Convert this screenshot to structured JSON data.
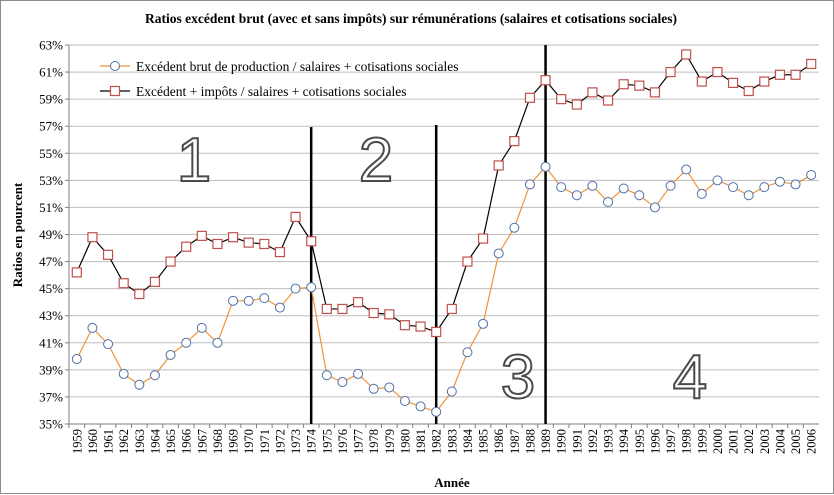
{
  "chart_data": {
    "type": "line",
    "title": "Ratios excédent brut (avec et sans impôts) sur rémunérations (salaires et cotisations sociales)",
    "xlabel": "Année",
    "ylabel": "Ratios en pourcent",
    "ylim": [
      35,
      63
    ],
    "y_ticks": [
      35,
      37,
      39,
      41,
      43,
      45,
      47,
      49,
      51,
      53,
      55,
      57,
      59,
      61,
      63
    ],
    "y_tick_suffix": "%",
    "grid": "horizontal",
    "legend_position": "top-left",
    "categories": [
      "1959",
      "1960",
      "1961",
      "1962",
      "1963",
      "1964",
      "1965",
      "1966",
      "1967",
      "1968",
      "1969",
      "1970",
      "1971",
      "1972",
      "1973",
      "1974",
      "1975",
      "1976",
      "1977",
      "1978",
      "1979",
      "1980",
      "1981",
      "1982",
      "1983",
      "1984",
      "1985",
      "1986",
      "1987",
      "1988",
      "1989",
      "1990",
      "1991",
      "1992",
      "1993",
      "1994",
      "1995",
      "1996",
      "1997",
      "1998",
      "1999",
      "2000",
      "2001",
      "2002",
      "2003",
      "2004",
      "2005",
      "2006"
    ],
    "series": [
      {
        "name": "Excédent brut de production / salaires + cotisations sociales",
        "marker": "circle",
        "color": "#f0923a",
        "marker_edge": "#4f6fa8",
        "values": [
          39.8,
          42.1,
          40.9,
          38.7,
          37.9,
          38.6,
          40.1,
          41.0,
          42.1,
          41.0,
          44.1,
          44.1,
          44.3,
          43.6,
          45.0,
          45.1,
          38.6,
          38.1,
          38.7,
          37.6,
          37.7,
          36.7,
          36.3,
          35.9,
          37.4,
          40.3,
          42.4,
          47.6,
          49.5,
          52.7,
          54.0,
          52.5,
          51.9,
          52.6,
          51.4,
          52.4,
          51.9,
          51.0,
          52.6,
          53.8,
          52.0,
          53.0,
          52.5,
          51.9,
          52.5,
          52.9,
          52.7,
          53.4
        ]
      },
      {
        "name": "Excédent + impôts / salaires + cotisations sociales",
        "marker": "square",
        "color": "#000000",
        "marker_edge": "#c0504d",
        "values": [
          46.2,
          48.8,
          47.5,
          45.4,
          44.6,
          45.5,
          47.0,
          48.1,
          48.9,
          48.3,
          48.8,
          48.4,
          48.3,
          47.7,
          50.3,
          48.5,
          43.5,
          43.5,
          44.0,
          43.2,
          43.1,
          42.3,
          42.2,
          41.8,
          43.5,
          47.0,
          48.7,
          54.1,
          55.9,
          59.1,
          60.4,
          59.0,
          58.6,
          59.5,
          58.9,
          60.1,
          60.0,
          59.5,
          61.0,
          62.3,
          60.3,
          61.0,
          60.2,
          59.6,
          60.3,
          60.8,
          60.8,
          61.6
        ]
      }
    ],
    "region_labels": [
      "1",
      "2",
      "3",
      "4"
    ],
    "period_dividers": [
      "1974",
      "1982",
      "1989"
    ]
  }
}
